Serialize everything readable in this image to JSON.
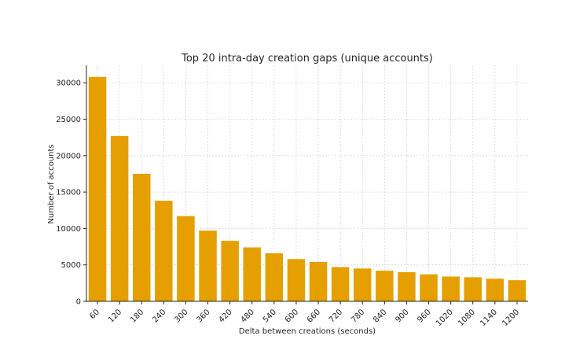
{
  "chart_data": {
    "type": "bar",
    "title": "Top 20 intra-day creation gaps (unique accounts)",
    "xlabel": "Delta between creations (seconds)",
    "ylabel": "Number of accounts",
    "categories": [
      "60",
      "120",
      "180",
      "240",
      "300",
      "360",
      "420",
      "480",
      "540",
      "600",
      "660",
      "720",
      "780",
      "840",
      "900",
      "960",
      "1020",
      "1080",
      "1140",
      "1200"
    ],
    "values": [
      30800,
      22700,
      17500,
      13800,
      11700,
      9700,
      8300,
      7400,
      6600,
      5800,
      5400,
      4700,
      4500,
      4200,
      4000,
      3700,
      3400,
      3300,
      3100,
      2900
    ],
    "yticks": [
      0,
      5000,
      10000,
      15000,
      20000,
      25000,
      30000
    ],
    "ylim": [
      0,
      32400
    ],
    "grid": true,
    "bar_color": "#e69f00",
    "grid_color": "#d9d9d9",
    "axis_color": "#262626"
  }
}
